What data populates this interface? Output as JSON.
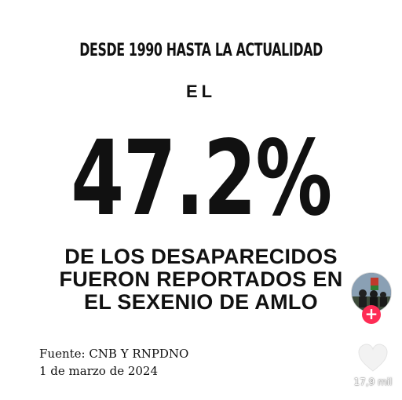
{
  "post": {
    "header": "DESDE 1990 HASTA LA ACTUALIDAD",
    "intro": "EL",
    "percentage": "47.2%",
    "description_lines": [
      "DE LOS DESAPARECIDOS",
      "FUERON REPORTADOS EN",
      "EL SEXENIO DE AMLO"
    ],
    "source_lines": [
      "Fuente: CNB Y RNPDNO",
      "1 de marzo de 2024"
    ]
  },
  "sidebar": {
    "follow_symbol": "+",
    "like_count": "17,9 mil",
    "accent_color": "#fe2c55",
    "icons": [
      "avatar",
      "plus-icon",
      "heart-icon"
    ]
  }
}
